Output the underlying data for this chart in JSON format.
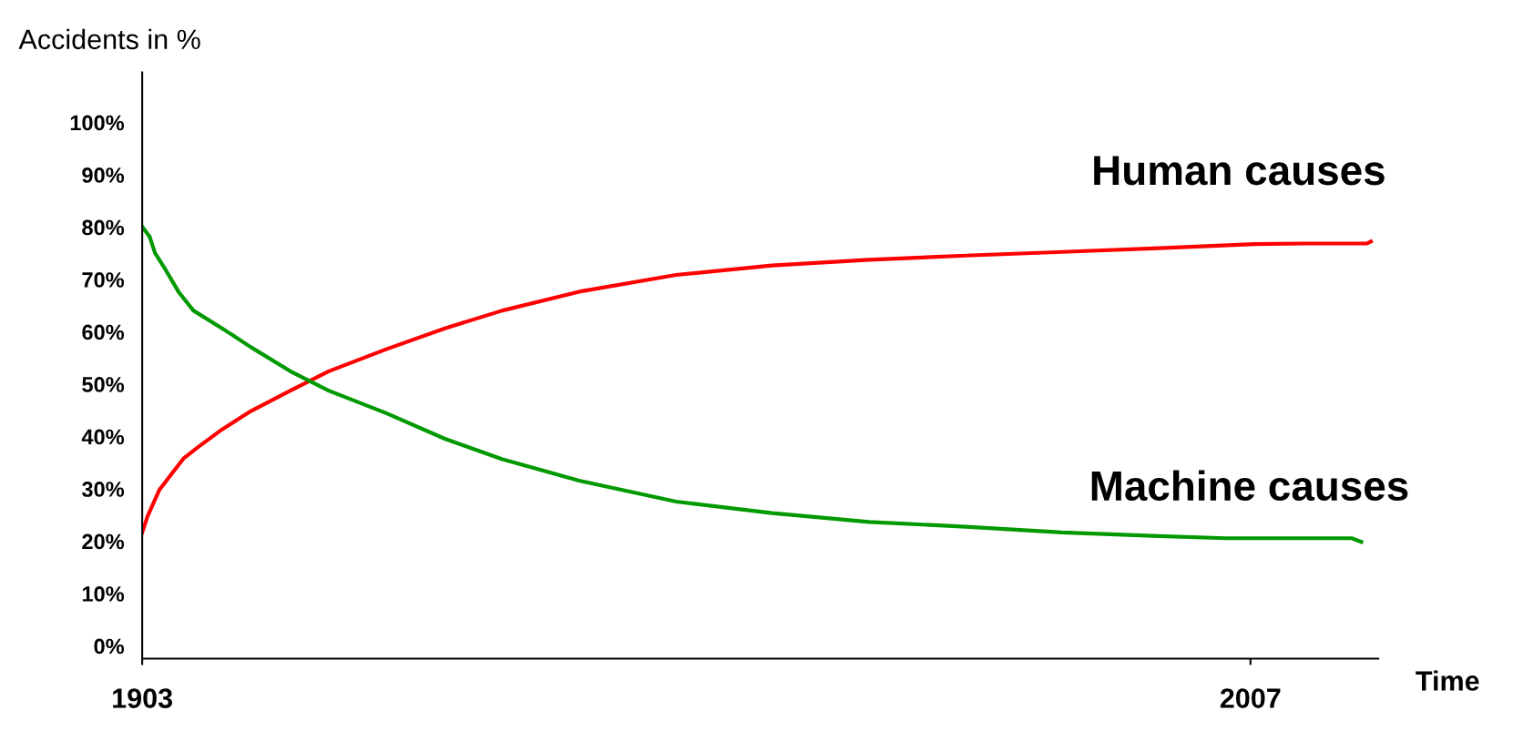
{
  "chart_data": {
    "type": "line",
    "xlabel": "Time",
    "ylabel": "Accidents in %",
    "xlim": [
      1903,
      2019
    ],
    "xticks": [
      1903,
      2007
    ],
    "ylim": [
      -2,
      110
    ],
    "yticks": [
      {
        "value": 0,
        "label": "0%"
      },
      {
        "value": 10,
        "label": "10%"
      },
      {
        "value": 20,
        "label": "20%"
      },
      {
        "value": 30,
        "label": "30%"
      },
      {
        "value": 40,
        "label": "40%"
      },
      {
        "value": 50,
        "label": "50%"
      },
      {
        "value": 60,
        "label": "60%"
      },
      {
        "value": 70,
        "label": "70%"
      },
      {
        "value": 80,
        "label": "80%"
      },
      {
        "value": 90,
        "label": "90%"
      },
      {
        "value": 100,
        "label": "100%"
      }
    ],
    "grid": false,
    "legend": false,
    "marker": "none",
    "line_style": "solid",
    "series": [
      {
        "name": "Human causes",
        "color": "#ff0000",
        "x": [
          1903,
          1903.5,
          1904.6,
          1905.5,
          1906.9,
          1908.3,
          1910.5,
          1913.2,
          1916.9,
          1920.5,
          1925.9,
          1931.4,
          1936.8,
          1944.0,
          1953.1,
          1962.1,
          1971.2,
          1980.3,
          1989.3,
          1998.4,
          2007.4,
          2012.0,
          2017.9,
          2018.3
        ],
        "values": [
          22.1,
          25.2,
          30.2,
          32.6,
          36.3,
          38.5,
          41.8,
          45.3,
          49.2,
          52.9,
          57.1,
          61.1,
          64.5,
          68.1,
          71.3,
          73.1,
          74.2,
          75.0,
          75.7,
          76.4,
          77.2,
          77.3,
          77.3,
          77.7
        ]
      },
      {
        "name": "Machine causes",
        "color": "#009900",
        "x": [
          1903,
          1903.7,
          1904.2,
          1905.1,
          1906.4,
          1907.8,
          1910.5,
          1913.2,
          1916.9,
          1920.5,
          1925.9,
          1931.4,
          1936.8,
          1944.0,
          1953.1,
          1962.1,
          1971.2,
          1980.3,
          1989.3,
          1998.4,
          2004.7,
          2016.5,
          2017.4
        ],
        "values": [
          80.5,
          78.6,
          75.5,
          72.6,
          68.1,
          64.5,
          61.1,
          57.5,
          52.9,
          49.2,
          44.9,
          40.0,
          36.1,
          32.0,
          28.0,
          25.8,
          24.1,
          23.2,
          22.1,
          21.4,
          21.0,
          21.0,
          20.3
        ]
      }
    ]
  }
}
